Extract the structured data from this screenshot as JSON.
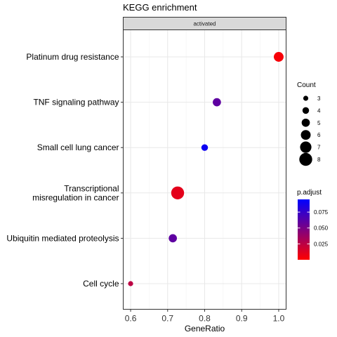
{
  "chart_data": {
    "type": "scatter",
    "title": "KEGG enrichment",
    "facet_label": "activated",
    "xlabel": "GeneRatio",
    "ylabel": "",
    "xlim": [
      0.58,
      1.02
    ],
    "x_ticks": [
      "0.6",
      "0.7",
      "0.8",
      "0.9",
      "1.0"
    ],
    "x_tick_values": [
      0.6,
      0.7,
      0.8,
      0.9,
      1.0
    ],
    "grid": true,
    "categories": [
      "Platinum drug resistance",
      "TNF signaling pathway",
      "Small cell lung cancer",
      "Transcriptional misregulation in cancer",
      "Ubiquitin mediated proteolysis",
      "Cell cycle"
    ],
    "category_display": [
      [
        "Platinum drug resistance"
      ],
      [
        "TNF signaling pathway"
      ],
      [
        "Small cell lung cancer"
      ],
      [
        "Transcriptional",
        "misregulation in cancer"
      ],
      [
        "Ubiquitin mediated proteolysis"
      ],
      [
        "Cell cycle"
      ]
    ],
    "points": [
      {
        "term": "Platinum drug resistance",
        "gene_ratio": 1.0,
        "count": 6,
        "p_adjust": 0.003
      },
      {
        "term": "TNF signaling pathway",
        "gene_ratio": 0.833,
        "count": 5,
        "p_adjust": 0.06
      },
      {
        "term": "Small cell lung cancer",
        "gene_ratio": 0.8,
        "count": 4,
        "p_adjust": 0.09
      },
      {
        "term": "Transcriptional misregulation in cancer",
        "gene_ratio": 0.727,
        "count": 8,
        "p_adjust": 0.01
      },
      {
        "term": "Ubiquitin mediated proteolysis",
        "gene_ratio": 0.714,
        "count": 5,
        "p_adjust": 0.06
      },
      {
        "term": "Cell cycle",
        "gene_ratio": 0.6,
        "count": 3,
        "p_adjust": 0.025
      }
    ],
    "legend_size": {
      "title": "Count",
      "values": [
        3,
        4,
        5,
        6,
        7,
        8
      ],
      "labels": [
        "3",
        "4",
        "5",
        "6",
        "7",
        "8"
      ]
    },
    "legend_color": {
      "title": "p.adjust",
      "min": 0.0,
      "max": 0.095,
      "ticks": [
        0.025,
        0.05,
        0.075
      ],
      "tick_labels": [
        "0.025",
        "0.050",
        "0.075"
      ],
      "low_color": "#ff0000",
      "high_color": "#0000ff"
    },
    "legend_position": "right"
  }
}
